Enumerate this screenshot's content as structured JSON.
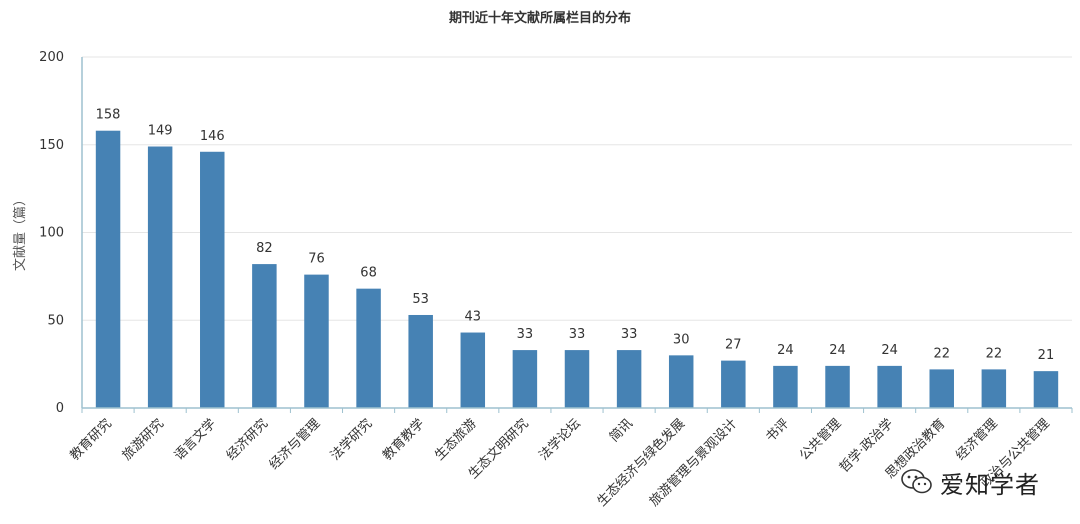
{
  "chart_data": {
    "type": "bar",
    "title": "期刊近十年文献所属栏目的分布",
    "ylabel": "文献量（篇）",
    "xlabel": "",
    "ylim": [
      0,
      200
    ],
    "yticks": [
      0,
      50,
      100,
      150,
      200
    ],
    "grid": true,
    "categories": [
      "教育研究",
      "旅游研究",
      "语言文学",
      "经济研究",
      "经济与管理",
      "法学研究",
      "教育教学",
      "生态旅游",
      "生态文明研究",
      "法学论坛",
      "简讯",
      "生态经济与绿色发展",
      "旅游管理与景观设计",
      "书评",
      "公共管理",
      "哲学·政治学",
      "思想政治教育",
      "经济管理",
      "政治与公共管理"
    ],
    "values": [
      158,
      149,
      146,
      82,
      76,
      68,
      53,
      43,
      33,
      33,
      33,
      30,
      27,
      24,
      24,
      24,
      22,
      22,
      21
    ],
    "bar_color": "#4682b4",
    "axis_color": "#9ec1cf",
    "grid_color": "#e5e5e5"
  },
  "watermark": {
    "text": "爱知学者",
    "icon": "wechat-icon"
  }
}
